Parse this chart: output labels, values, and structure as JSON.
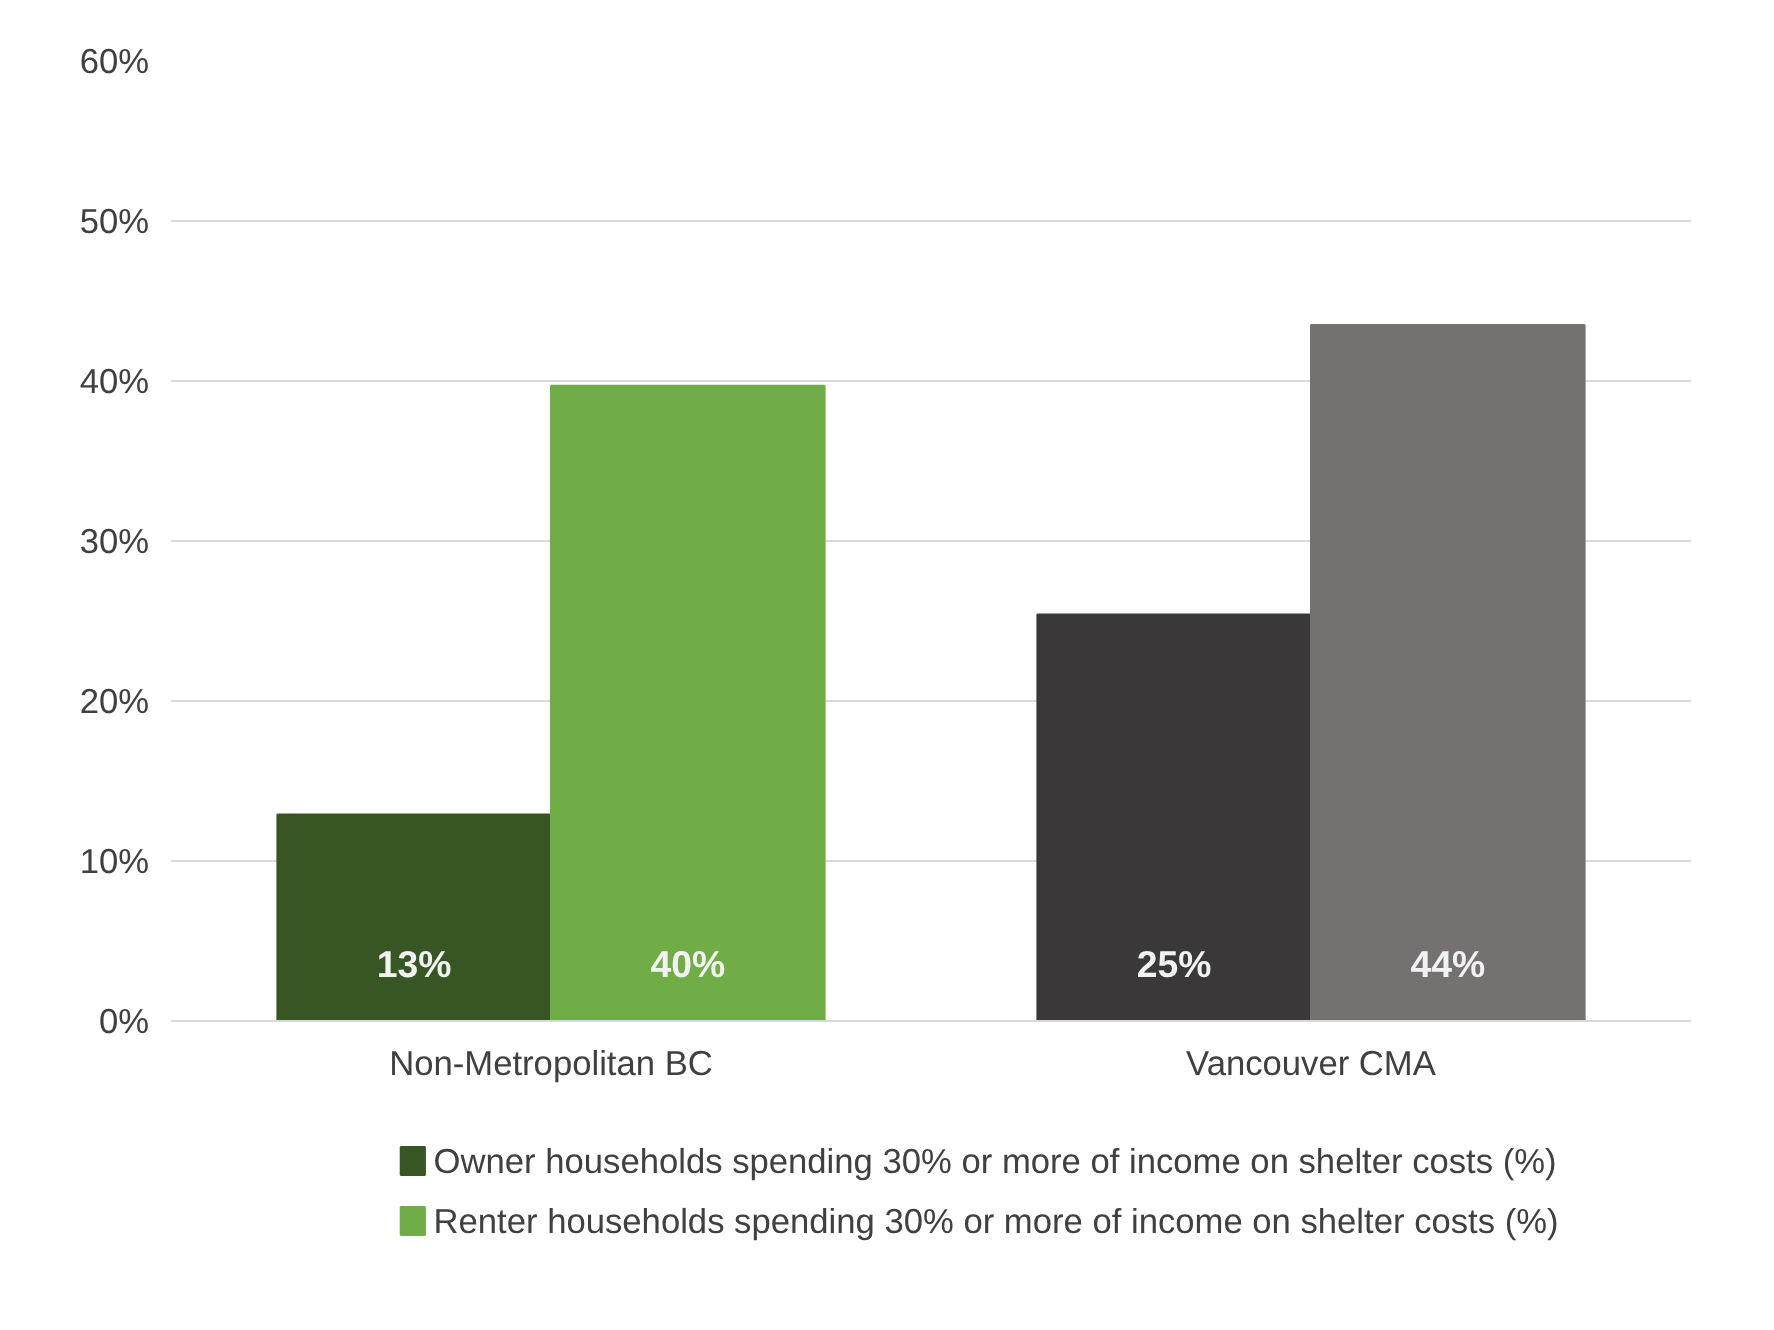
{
  "chart_data": {
    "type": "bar",
    "categories": [
      "Non-Metropolitan BC",
      "Vancouver CMA"
    ],
    "series": [
      {
        "name": "Owner households spending 30% or more of income on shelter costs (%)",
        "color": "#375623",
        "colors": [
          "#375623",
          "#3a3838"
        ],
        "values": [
          12.9,
          25.4
        ],
        "value_labels": [
          "13%",
          "25%"
        ]
      },
      {
        "name": "Renter households spending 30% or more of income on shelter costs (%)",
        "color": "#70ad47",
        "colors": [
          "#70ad47",
          "#767171"
        ],
        "values": [
          39.7,
          43.5
        ],
        "value_labels": [
          "40%",
          "44%"
        ]
      }
    ],
    "ylim": [
      0,
      60
    ],
    "yticks": [
      {
        "value": 0,
        "label": "0%"
      },
      {
        "value": 10,
        "label": "10%"
      },
      {
        "value": 20,
        "label": "20%"
      },
      {
        "value": 30,
        "label": "30%"
      },
      {
        "value": 40,
        "label": "40%"
      },
      {
        "value": 50,
        "label": "50%"
      },
      {
        "value": 60,
        "label": "60%"
      }
    ],
    "grid": "y",
    "legend": "bottom"
  }
}
